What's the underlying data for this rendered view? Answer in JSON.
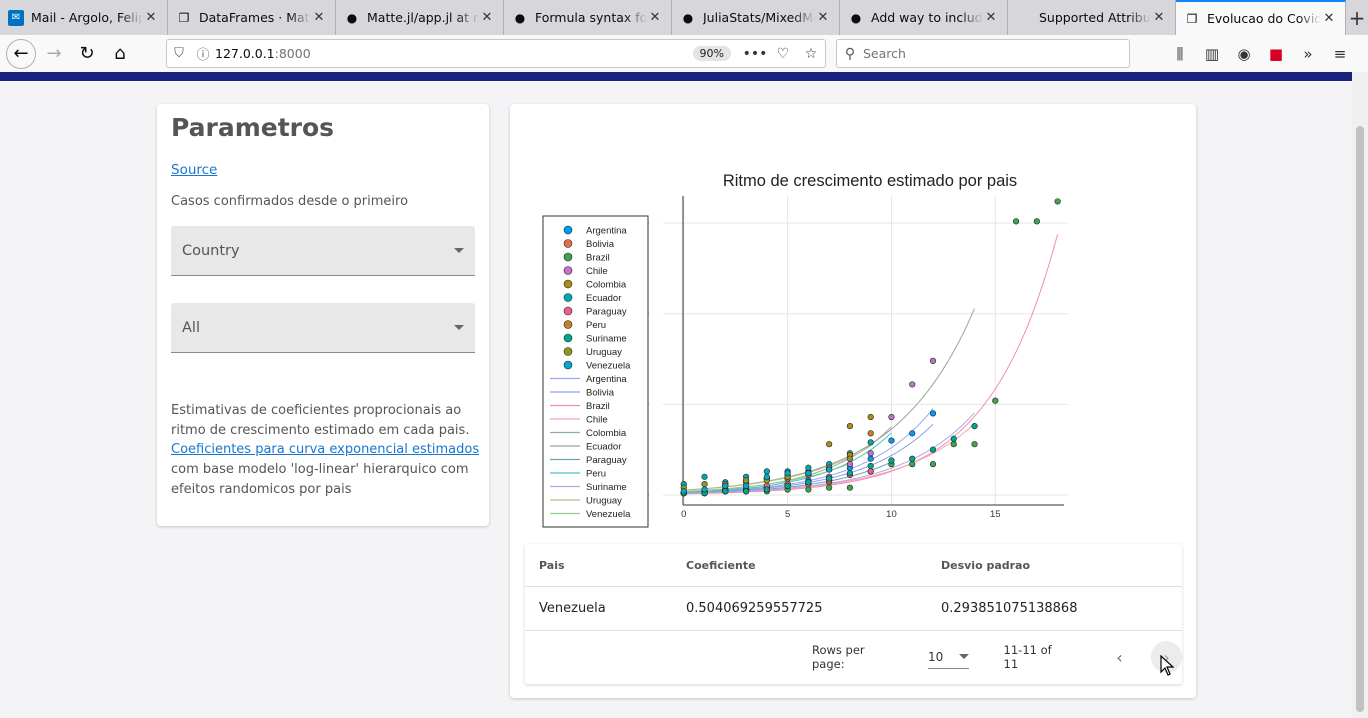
{
  "browser": {
    "tabs": [
      {
        "label": "Mail - Argolo, Felipe",
        "icon": "outlook-icon"
      },
      {
        "label": "DataFrames · Matte",
        "icon": "page-icon"
      },
      {
        "label": "Matte.jl/app.jl at m",
        "icon": "github-icon"
      },
      {
        "label": "Formula syntax for",
        "icon": "github-icon"
      },
      {
        "label": "JuliaStats/MixedMo",
        "icon": "github-icon"
      },
      {
        "label": "Add way to include",
        "icon": "github-icon"
      },
      {
        "label": "Supported Attributes",
        "icon": "none"
      },
      {
        "label": "Evolucao do Covid",
        "icon": "page-icon",
        "active": true
      }
    ],
    "url_host": "127.0.0.1",
    "url_port": ":8000",
    "zoom": "90%",
    "search_placeholder": "Search"
  },
  "sidebar": {
    "title": "Parametros",
    "source_link": "Source",
    "subtitle": "Casos confirmados desde o primeiro",
    "country_select": "Country",
    "all_select": "All",
    "notes_pre": "Estimativas de coeficientes proprocionais ao ritmo de crescimento estimado em cada pais.",
    "notes_link": "Coeficientes para curva exponencial estimados",
    "notes_post": " com base modelo 'log-linear' hierarquico com efeitos randomicos por pais"
  },
  "chart_data": {
    "type": "scatter",
    "title": "Ritmo de crescimento estimado por pais",
    "xlabel": "",
    "ylabel": "",
    "xlim": [
      -1,
      18.5
    ],
    "ylim": [
      -5,
      165
    ],
    "xticks": [
      0,
      5,
      10,
      15
    ],
    "yticks": [
      0,
      50,
      100,
      150
    ],
    "grid": true,
    "legend": "left",
    "series": [
      {
        "name": "Argentina",
        "color": "#009af9",
        "points": [
          [
            0,
            1
          ],
          [
            1,
            1
          ],
          [
            2,
            2
          ],
          [
            3,
            3
          ],
          [
            4,
            4
          ],
          [
            5,
            6
          ],
          [
            6,
            8
          ],
          [
            7,
            10
          ],
          [
            8,
            15
          ],
          [
            9,
            20
          ],
          [
            10,
            30
          ],
          [
            11,
            34
          ],
          [
            12,
            45
          ]
        ]
      },
      {
        "name": "Bolivia",
        "color": "#e26f46",
        "points": [
          [
            0,
            1
          ],
          [
            1,
            2
          ],
          [
            2,
            3
          ],
          [
            3,
            3
          ],
          [
            4,
            4
          ],
          [
            5,
            5
          ],
          [
            6,
            6
          ],
          [
            7,
            7
          ]
        ]
      },
      {
        "name": "Brazil",
        "color": "#3ea44e",
        "points": [
          [
            0,
            1
          ],
          [
            1,
            1
          ],
          [
            2,
            2
          ],
          [
            3,
            2
          ],
          [
            4,
            2
          ],
          [
            5,
            3
          ],
          [
            6,
            3
          ],
          [
            7,
            4
          ],
          [
            8,
            4
          ],
          [
            9,
            13
          ],
          [
            10,
            17
          ],
          [
            11,
            17
          ],
          [
            12,
            17
          ],
          [
            13,
            28
          ],
          [
            14,
            28
          ],
          [
            15,
            52
          ],
          [
            16,
            151
          ],
          [
            17,
            151
          ],
          [
            18,
            162
          ]
        ]
      },
      {
        "name": "Chile",
        "color": "#c271d2",
        "points": [
          [
            0,
            1
          ],
          [
            1,
            1
          ],
          [
            2,
            2
          ],
          [
            3,
            3
          ],
          [
            4,
            4
          ],
          [
            5,
            5
          ],
          [
            6,
            7
          ],
          [
            7,
            10
          ],
          [
            8,
            17
          ],
          [
            9,
            23
          ],
          [
            10,
            43
          ],
          [
            11,
            61
          ],
          [
            12,
            74
          ]
        ]
      },
      {
        "name": "Colombia",
        "color": "#ac8d18",
        "points": [
          [
            0,
            1
          ],
          [
            1,
            1
          ],
          [
            2,
            3
          ],
          [
            3,
            3
          ],
          [
            4,
            9
          ],
          [
            5,
            9
          ],
          [
            6,
            13
          ],
          [
            7,
            28
          ],
          [
            8,
            38
          ],
          [
            9,
            43
          ]
        ]
      },
      {
        "name": "Ecuador",
        "color": "#00a9ad",
        "points": [
          [
            0,
            6
          ],
          [
            1,
            10
          ],
          [
            2,
            7
          ],
          [
            3,
            10
          ],
          [
            4,
            13
          ],
          [
            5,
            13
          ],
          [
            6,
            15
          ],
          [
            7,
            17
          ],
          [
            8,
            23
          ],
          [
            9,
            29
          ]
        ]
      },
      {
        "name": "Paraguay",
        "color": "#ed5d92",
        "points": [
          [
            0,
            1
          ],
          [
            1,
            2
          ],
          [
            2,
            2
          ],
          [
            3,
            2
          ],
          [
            4,
            5
          ],
          [
            5,
            6
          ],
          [
            6,
            6
          ],
          [
            7,
            8
          ],
          [
            8,
            11
          ],
          [
            9,
            13
          ]
        ]
      },
      {
        "name": "Peru",
        "color": "#c68125",
        "points": [
          [
            0,
            1
          ],
          [
            1,
            2
          ],
          [
            2,
            5
          ],
          [
            3,
            7
          ],
          [
            4,
            9
          ],
          [
            5,
            11
          ],
          [
            6,
            11
          ],
          [
            7,
            15
          ],
          [
            8,
            22
          ],
          [
            9,
            34
          ]
        ]
      },
      {
        "name": "Suriname",
        "color": "#00a98d",
        "points": [
          [
            0,
            1
          ],
          [
            1,
            1
          ],
          [
            2,
            2
          ],
          [
            3,
            2
          ],
          [
            4,
            3
          ],
          [
            5,
            5
          ],
          [
            6,
            7
          ],
          [
            7,
            9
          ],
          [
            8,
            12
          ],
          [
            9,
            16
          ],
          [
            10,
            19
          ],
          [
            11,
            20
          ],
          [
            12,
            25
          ],
          [
            13,
            31
          ],
          [
            14,
            38
          ]
        ]
      },
      {
        "name": "Uruguay",
        "color": "#8e971e",
        "points": [
          [
            0,
            4
          ],
          [
            1,
            6
          ],
          [
            2,
            6
          ],
          [
            3,
            8
          ],
          [
            4,
            8
          ],
          [
            5,
            10
          ],
          [
            6,
            12
          ],
          [
            7,
            14
          ],
          [
            8,
            20
          ]
        ]
      },
      {
        "name": "Venezuela",
        "color": "#00a8cb",
        "points": [
          [
            0,
            2
          ],
          [
            1,
            3
          ],
          [
            2,
            5
          ],
          [
            3,
            5
          ],
          [
            4,
            10
          ],
          [
            5,
            12
          ],
          [
            6,
            12
          ],
          [
            7,
            14
          ]
        ]
      }
    ],
    "curves": [
      {
        "name": "Argentina",
        "color": "#9fa6f5",
        "a": 1.3,
        "b": 0.3,
        "xmax": 12
      },
      {
        "name": "Bolivia",
        "color": "#8e9df2",
        "a": 1.2,
        "b": 0.29,
        "xmax": 12
      },
      {
        "name": "Brazil",
        "color": "#f08fa5",
        "a": 0.65,
        "b": 0.3,
        "xmax": 18
      },
      {
        "name": "Chile",
        "color": "#f7a3b0",
        "a": 0.9,
        "b": 0.27,
        "xmax": 14
      },
      {
        "name": "Colombia",
        "color": "#8fb09a",
        "a": 1.7,
        "b": 0.31,
        "xmax": 10
      },
      {
        "name": "Ecuador",
        "color": "#a0a0a0",
        "a": 2.7,
        "b": 0.26,
        "xmax": 14
      },
      {
        "name": "Paraguay",
        "color": "#6fa4b8",
        "a": 1.0,
        "b": 0.29,
        "xmax": 10
      },
      {
        "name": "Peru",
        "color": "#4cc2c8",
        "a": 1.4,
        "b": 0.32,
        "xmax": 10
      },
      {
        "name": "Suriname",
        "color": "#b0a5e8",
        "a": 0.9,
        "b": 0.28,
        "xmax": 14
      },
      {
        "name": "Uruguay",
        "color": "#b5c08a",
        "a": 2.6,
        "b": 0.26,
        "xmax": 9
      },
      {
        "name": "Venezuela",
        "color": "#8fd08f",
        "a": 2.0,
        "b": 0.27,
        "xmax": 8
      }
    ]
  },
  "table": {
    "headers": [
      "Pais",
      "Coeficiente",
      "Desvio padrao"
    ],
    "rows": [
      [
        "Venezuela",
        "0.504069259557725",
        "0.293851075138868"
      ]
    ],
    "rows_per_page_label": "Rows per page:",
    "rows_per_page": "10",
    "range": "11-11 of 11"
  }
}
